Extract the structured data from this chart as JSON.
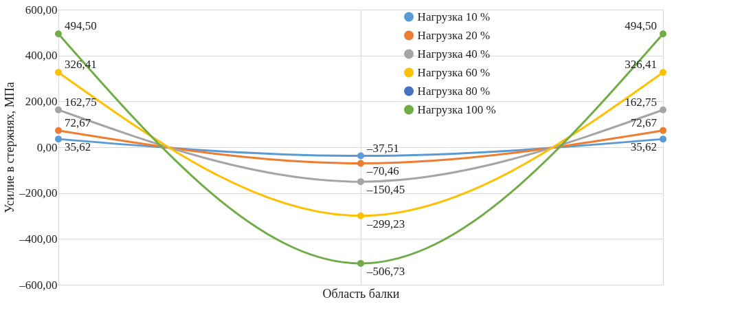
{
  "chart_data": {
    "type": "line",
    "xlabel": "Область балки",
    "ylabel": "Усилие в стержнях, МПа",
    "categories": [
      null,
      null,
      null
    ],
    "series": [
      {
        "name": "Нагрузка 10 %",
        "color": "#5b9bd5",
        "values": [
          35.62,
          -37.51,
          35.62
        ],
        "value_labels": [
          "35,62",
          "–37,51",
          "35,62"
        ]
      },
      {
        "name": "Нагрузка 20 %",
        "color": "#ed7d31",
        "values": [
          72.67,
          -70.46,
          72.67
        ],
        "value_labels": [
          "72,67",
          "–70,46",
          "72,67"
        ]
      },
      {
        "name": "Нагрузка 40 %",
        "color": "#a5a5a5",
        "values": [
          162.75,
          -150.45,
          162.75
        ],
        "value_labels": [
          "162,75",
          "–150,45",
          "162,75"
        ]
      },
      {
        "name": "Нагрузка 60 %",
        "color": "#ffc000",
        "values": [
          326.41,
          -299.23,
          326.41
        ],
        "value_labels": [
          "326,41",
          "–299,23",
          "326,41"
        ]
      },
      {
        "name": "Нагрузка 80 %",
        "color": "#4472c4",
        "values": [
          null,
          null,
          null
        ]
      },
      {
        "name": "Нагрузка 100 %",
        "color": "#70ad47",
        "values": [
          494.5,
          -506.73,
          494.5
        ],
        "value_labels": [
          "494,50",
          "–506,73",
          "494,50"
        ]
      }
    ],
    "ylim": [
      -600,
      600
    ],
    "yticks": [
      {
        "value": -600,
        "label": "–600,00"
      },
      {
        "value": -400,
        "label": "–400,00"
      },
      {
        "value": -200,
        "label": "–200,00"
      },
      {
        "value": 0,
        "label": "0,00"
      },
      {
        "value": 200,
        "label": "200,00"
      },
      {
        "value": 400,
        "label": "400,00"
      },
      {
        "value": 600,
        "label": "600,00"
      }
    ],
    "grid": true,
    "legend": "top right",
    "marker": "circle",
    "line_style": "solid"
  }
}
